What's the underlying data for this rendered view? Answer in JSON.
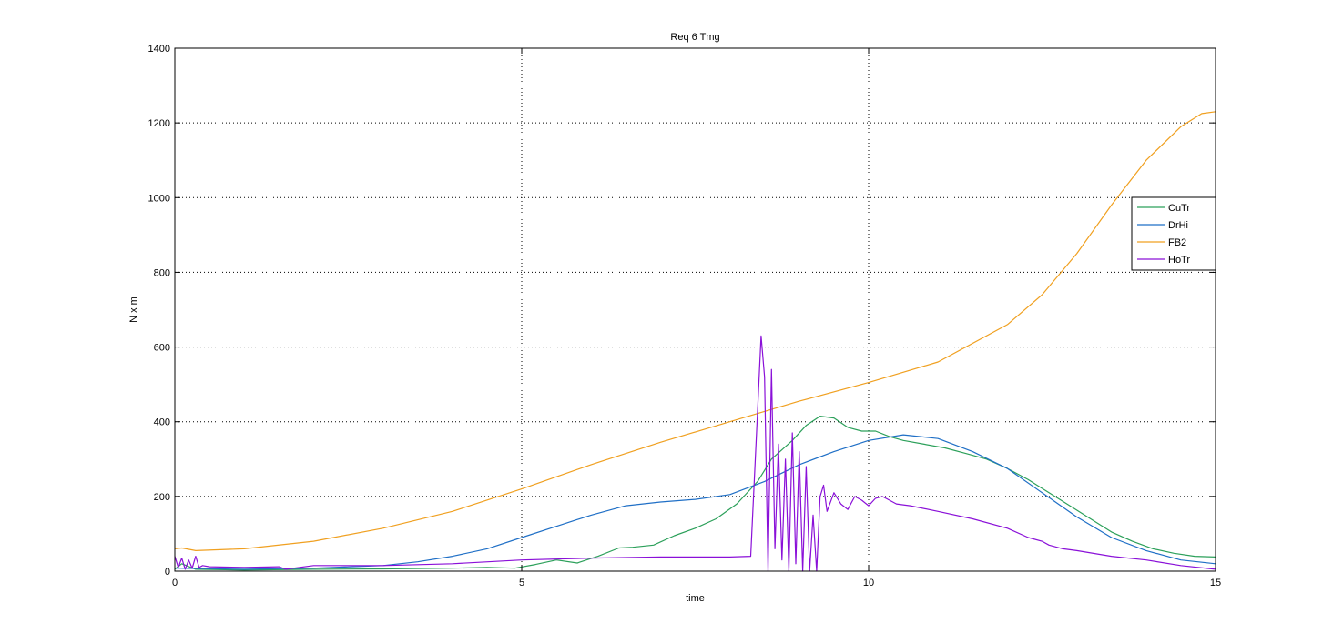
{
  "chart_data": {
    "type": "line",
    "title": "Req 6 Tmg",
    "xlabel": "time",
    "ylabel": "N x m",
    "xlim": [
      0,
      15
    ],
    "ylim": [
      0,
      1400
    ],
    "xticks": [
      0,
      5,
      10,
      15
    ],
    "yticks": [
      0,
      200,
      400,
      600,
      800,
      1000,
      1200,
      1400
    ],
    "grid": true,
    "legend_position": "right",
    "series": [
      {
        "name": "CuTr",
        "color": "#2ca05a",
        "x": [
          0,
          0.1,
          0.3,
          1,
          2,
          3,
          4,
          4.5,
          4.9,
          5.2,
          5.5,
          5.8,
          6.1,
          6.4,
          6.6,
          6.9,
          7.2,
          7.5,
          7.8,
          8.1,
          8.4,
          8.6,
          8.9,
          9.1,
          9.3,
          9.5,
          9.7,
          9.9,
          10.1,
          10.3,
          10.5,
          10.8,
          11.1,
          11.4,
          11.7,
          12,
          12.3,
          12.6,
          12.9,
          13.2,
          13.5,
          13.8,
          14.1,
          14.4,
          14.7,
          15
        ],
        "y": [
          5,
          20,
          5,
          3,
          5,
          6,
          8,
          10,
          8,
          18,
          30,
          22,
          40,
          62,
          64,
          70,
          95,
          115,
          140,
          180,
          240,
          300,
          350,
          390,
          415,
          410,
          385,
          375,
          375,
          360,
          350,
          340,
          330,
          315,
          300,
          275,
          245,
          210,
          175,
          140,
          105,
          80,
          60,
          48,
          40,
          38
        ]
      },
      {
        "name": "DrHi",
        "color": "#1f6fc6",
        "x": [
          0,
          1,
          2,
          3,
          3.5,
          4,
          4.5,
          5,
          5.5,
          6,
          6.5,
          7,
          7.5,
          8,
          8.5,
          9,
          9.5,
          10,
          10.5,
          11,
          11.5,
          12,
          12.5,
          13,
          13.5,
          14,
          14.5,
          15
        ],
        "y": [
          8,
          5,
          8,
          15,
          25,
          40,
          60,
          90,
          120,
          150,
          175,
          185,
          192,
          205,
          240,
          285,
          320,
          350,
          365,
          355,
          320,
          275,
          210,
          145,
          90,
          55,
          30,
          20
        ]
      },
      {
        "name": "FB2",
        "color": "#f0a020",
        "x": [
          0,
          0.1,
          0.3,
          1,
          2,
          3,
          4,
          5,
          6,
          7,
          8,
          9,
          10,
          11,
          12,
          12.5,
          13,
          13.5,
          14,
          14.5,
          14.8,
          15
        ],
        "y": [
          60,
          62,
          55,
          60,
          80,
          115,
          160,
          220,
          285,
          345,
          400,
          455,
          505,
          560,
          660,
          740,
          850,
          980,
          1100,
          1190,
          1225,
          1230
        ]
      },
      {
        "name": "HoTr",
        "color": "#8a10d8",
        "x": [
          0,
          0.05,
          0.1,
          0.15,
          0.2,
          0.25,
          0.3,
          0.35,
          0.4,
          0.5,
          1,
          1.5,
          1.6,
          2,
          3,
          4,
          5,
          6,
          7,
          8,
          8.3,
          8.45,
          8.5,
          8.55,
          8.6,
          8.65,
          8.7,
          8.75,
          8.8,
          8.85,
          8.9,
          8.95,
          9.0,
          9.05,
          9.1,
          9.15,
          9.2,
          9.25,
          9.3,
          9.35,
          9.4,
          9.5,
          9.6,
          9.7,
          9.8,
          9.9,
          10.0,
          10.1,
          10.2,
          10.4,
          10.6,
          11,
          11.5,
          12,
          12.3,
          12.5,
          12.6,
          12.8,
          13,
          13.5,
          14,
          14.5,
          15
        ],
        "y": [
          40,
          10,
          35,
          5,
          30,
          8,
          40,
          10,
          15,
          12,
          10,
          12,
          5,
          15,
          15,
          20,
          30,
          35,
          38,
          38,
          40,
          630,
          520,
          0,
          540,
          60,
          340,
          30,
          300,
          0,
          370,
          20,
          320,
          0,
          280,
          0,
          150,
          0,
          200,
          230,
          160,
          210,
          180,
          165,
          200,
          190,
          175,
          195,
          200,
          180,
          175,
          160,
          140,
          115,
          90,
          80,
          70,
          60,
          55,
          40,
          30,
          15,
          5
        ]
      }
    ]
  }
}
